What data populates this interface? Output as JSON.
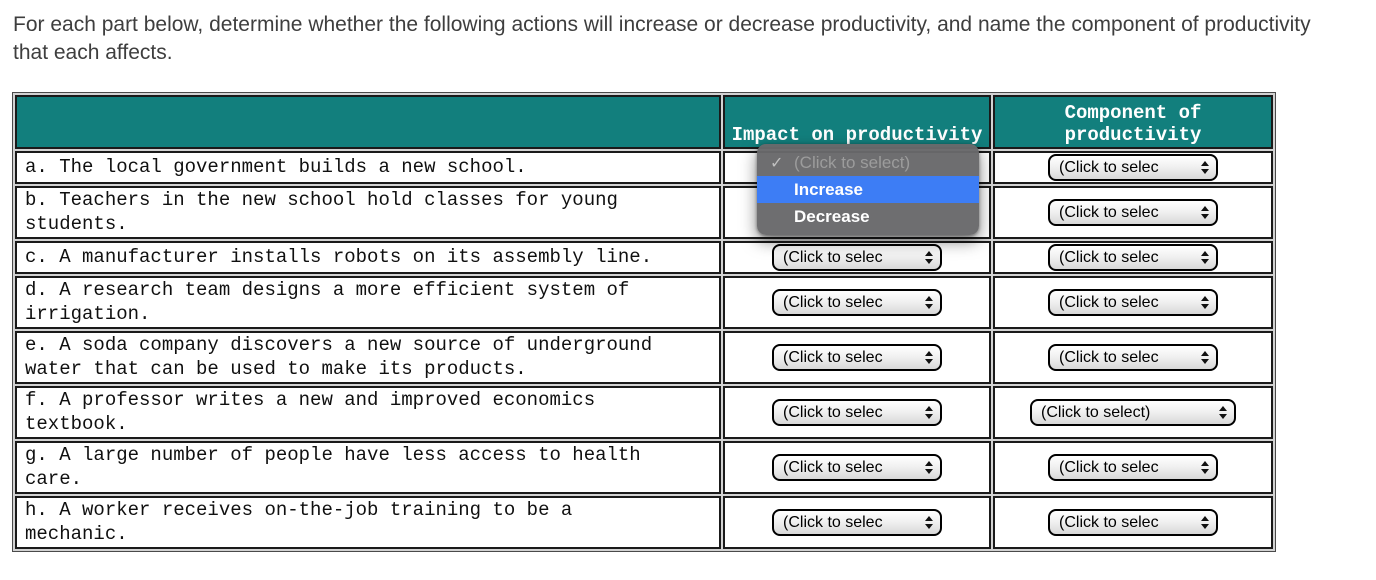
{
  "instructions": "For each part below, determine whether the following actions will increase or decrease productivity, and name the component of productivity that each affects.",
  "table": {
    "header": {
      "question": "",
      "impact": "Impact on productivity",
      "component": "Component of productivity"
    },
    "rows": [
      {
        "label": "a",
        "lines": [
          "a. The local government builds a new school."
        ],
        "impact_select_visible": false,
        "component_label": "truncated"
      },
      {
        "label": "b",
        "lines": [
          "b. Teachers in the new school hold classes for young",
          "students."
        ],
        "impact_select_visible": false,
        "component_label": "truncated"
      },
      {
        "label": "c",
        "lines": [
          "c. A manufacturer installs robots on its assembly line."
        ],
        "impact_select_visible": true,
        "component_label": "truncated"
      },
      {
        "label": "d",
        "lines": [
          "d. A research team designs a more efficient system of",
          "irrigation."
        ],
        "impact_select_visible": true,
        "component_label": "truncated"
      },
      {
        "label": "e",
        "lines": [
          "e. A soda company discovers a new source of underground",
          "water that can be used to make its products."
        ],
        "impact_select_visible": true,
        "component_label": "truncated"
      },
      {
        "label": "f",
        "lines": [
          "f. A professor writes a new and improved economics",
          "textbook."
        ],
        "impact_select_visible": true,
        "component_label": "full"
      },
      {
        "label": "g",
        "lines": [
          "g. A large number of people have less access to health",
          "care."
        ],
        "impact_select_visible": true,
        "component_label": "truncated"
      },
      {
        "label": "h",
        "lines": [
          "h. A worker receives on-the-job training to be a",
          "mechanic."
        ],
        "impact_select_visible": true,
        "component_label": "truncated"
      }
    ]
  },
  "select": {
    "label_truncated": "(Click to selec",
    "label_full": "(Click to select)"
  },
  "dropdown_menu": {
    "check_glyph": "✓",
    "items": [
      {
        "label": "(Click to select)",
        "checked": true,
        "highlighted": false
      },
      {
        "label": "Increase",
        "checked": false,
        "highlighted": true
      },
      {
        "label": "Decrease",
        "checked": false,
        "highlighted": false
      }
    ]
  },
  "colors": {
    "header_teal": "#127F7D",
    "highlight_blue": "#3D7DF5",
    "menu_gray": "#69696B"
  }
}
